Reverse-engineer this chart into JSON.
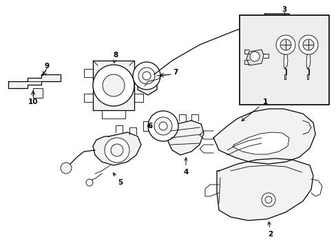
{
  "background_color": "#ffffff",
  "line_color": "#000000",
  "label_color": "#000000",
  "fill_light": "#f2f2f2",
  "fill_medium": "#e0e0e0",
  "fill_box": "#efefef",
  "figsize": [
    4.89,
    3.6
  ],
  "dpi": 100,
  "lw_main": 0.9,
  "lw_thin": 0.6,
  "label_fs": 7.5
}
